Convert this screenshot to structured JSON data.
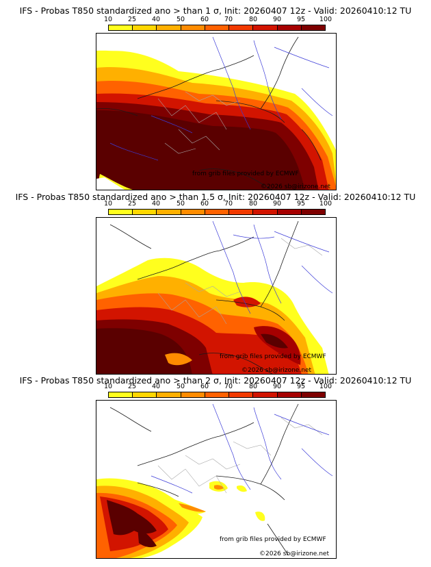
{
  "colors": {
    "levels": [
      "#ffff1e",
      "#ffd700",
      "#ffb000",
      "#ff8c00",
      "#ff6200",
      "#f23a00",
      "#d21400",
      "#a60000",
      "#7e0000",
      "#5a0000"
    ],
    "sea": "#ffffff",
    "rivers": "#3b3bd8",
    "borders": "#1a1a1a",
    "regions": "#a8a8a8"
  },
  "colorbar": {
    "ticks": [
      "10",
      "25",
      "40",
      "50",
      "60",
      "70",
      "80",
      "90",
      "95",
      "100"
    ]
  },
  "panels": [
    {
      "title": "IFS - Probas T850  standardized ano > than 1 σ, Init: 20260407 12z - Valid: 20260410:12 TU",
      "credit_source": "from grib files provided by ECMWF",
      "credit_copyright": "©2026 sb@irizone.net"
    },
    {
      "title": "IFS - Probas T850  standardized ano > than 1.5 σ, Init: 20260407 12z - Valid: 20260410:12 TU",
      "credit_source": "from grib files provided by ECMWF",
      "credit_copyright": "©2026 sb@irizone.net"
    },
    {
      "title": "IFS - Probas T850  standardized ano > than 2 σ, Init: 20260407 12z - Valid: 20260410:12 TU",
      "credit_source": "from grib files provided by ECMWF",
      "credit_copyright": "©2026 sb@irizone.net"
    }
  ]
}
